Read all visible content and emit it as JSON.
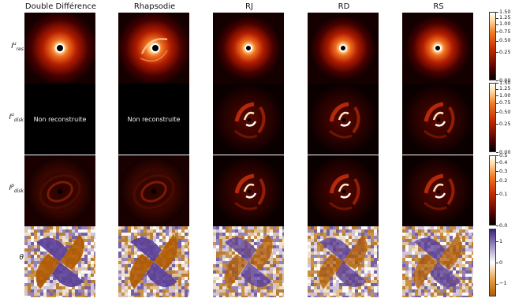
{
  "columns": [
    "Double Différence",
    "Rhapsodie",
    "RJ",
    "RD",
    "RS"
  ],
  "rows": [
    {
      "base": "I",
      "sup": "u",
      "sub": "res"
    },
    {
      "base": "I",
      "sup": "u",
      "sub": "disk"
    },
    {
      "base": "I",
      "sup": "p",
      "sub": "disk"
    },
    {
      "base": "θ",
      "sup": "",
      "sub": ""
    }
  ],
  "not_reconstructed_label": "Non reconstruite",
  "colorbars": [
    {
      "ticks": [
        "1.50",
        "1.25",
        "1.00",
        "0.75",
        "0.50",
        "0.25",
        "0.00"
      ],
      "scale": "power"
    },
    {
      "ticks": [
        "1.50",
        "1.25",
        "1.00",
        "0.75",
        "0.50",
        "0.25",
        "0.00"
      ],
      "scale": "power"
    },
    {
      "ticks": [
        "0.5",
        "0.4",
        "0.3",
        "0.2",
        "0.1",
        "0.0"
      ],
      "scale": "power"
    },
    {
      "ticks": [
        "1",
        "0",
        "−1"
      ],
      "scale": "linear"
    }
  ],
  "colors": {
    "heat_low": "#000000",
    "heat_mid": "#c42a00",
    "heat_high": "#ffffff",
    "div_neg": "#b15a00",
    "div_pos": "#4a2f8a"
  }
}
